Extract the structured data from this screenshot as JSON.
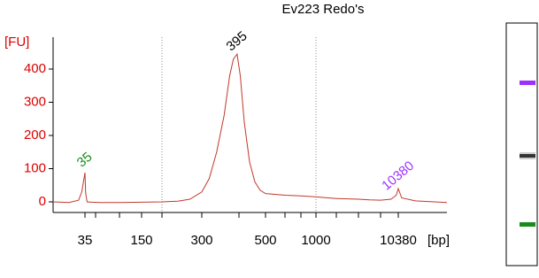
{
  "chart_data": {
    "type": "line",
    "title": "Ev223 Redo's",
    "y_label": "[FU]",
    "x_label": "[bp]",
    "x": [
      25,
      30,
      33,
      34,
      35,
      36,
      38,
      45,
      60,
      100,
      150,
      200,
      240,
      270,
      300,
      320,
      340,
      360,
      375,
      385,
      395,
      405,
      420,
      440,
      460,
      480,
      500,
      600,
      700,
      1000,
      2000,
      3000,
      5000,
      7000,
      9000,
      10000,
      10380,
      10700,
      12000,
      15000
    ],
    "series": [
      {
        "name": "Ev223 Redo's",
        "color": "#c0392b",
        "values": [
          0,
          -2,
          5,
          30,
          88,
          25,
          0,
          -1,
          -2,
          -2,
          -1,
          0,
          2,
          8,
          30,
          70,
          150,
          260,
          380,
          430,
          445,
          380,
          240,
          120,
          60,
          35,
          25,
          20,
          18,
          15,
          10,
          8,
          6,
          5,
          8,
          20,
          40,
          12,
          3,
          -2
        ]
      }
    ],
    "xlim": [
      25,
      15000
    ],
    "ylim": [
      -32,
      496
    ],
    "xticks": [
      35,
      150,
      300,
      500,
      1000,
      10380
    ],
    "xminor_ticks": [
      50,
      100,
      200,
      400,
      600,
      700,
      2000,
      3000,
      7000
    ],
    "yticks": [
      0,
      100,
      200,
      300,
      400
    ],
    "dotted_gridlines": [
      200,
      1000
    ],
    "annotations": [
      {
        "text": "35",
        "x": 35,
        "y": 88,
        "color": "#1a8a1a"
      },
      {
        "text": "395",
        "x": 395,
        "y": 445,
        "color": "#000000"
      },
      {
        "text": "10380",
        "x": 10380,
        "y": 40,
        "color": "#9b30ff"
      }
    ]
  }
}
